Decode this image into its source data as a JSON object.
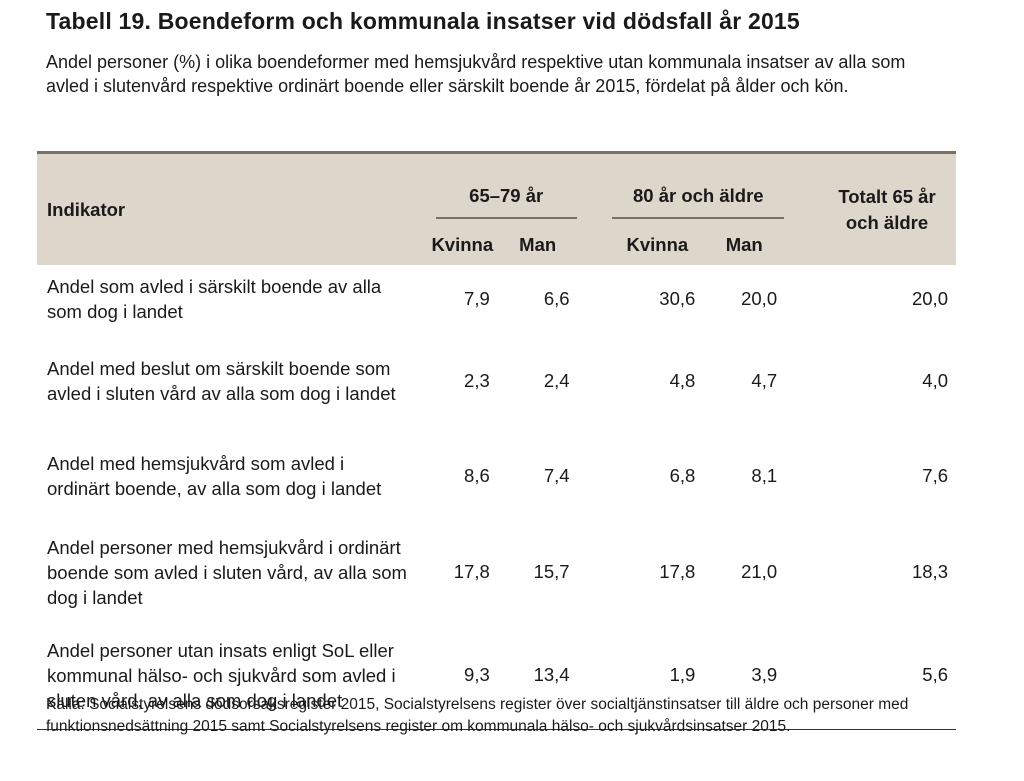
{
  "title": "Tabell 19. Boendeform och kommunala insatser vid dödsfall år 2015",
  "subtitle": "Andel personer (%) i olika boendeformer med hemsjukvård respektive utan kommunala insatser av alla som avled i slutenvård respektive ordinärt boende eller särskilt boende år 2015, fördelat på ålder och kön.",
  "table": {
    "indicator_header": "Indikator",
    "group1": "65–79 år",
    "group2": "80 år och äldre",
    "total_header": "Totalt 65 år och äldre",
    "women": "Kvinna",
    "men": "Man",
    "rows": [
      {
        "label": "Andel som avled i särskilt boende av alla som dog i landet",
        "k1": "7,9",
        "m1": "6,6",
        "k2": "30,6",
        "m2": "20,0",
        "total": "20,0"
      },
      {
        "label": "Andel med beslut om särskilt boende som avled i sluten vård av alla som dog i landet",
        "k1": "2,3",
        "m1": "2,4",
        "k2": "4,8",
        "m2": "4,7",
        "total": "4,0"
      },
      {
        "label": "Andel med hemsjukvård som avled i ordinärt boende, av alla som dog i landet",
        "k1": "8,6",
        "m1": "7,4",
        "k2": "6,8",
        "m2": "8,1",
        "total": "7,6"
      },
      {
        "label": "Andel personer med hemsjukvård i ordinärt boende som avled i sluten vård, av alla som dog i landet",
        "k1": "17,8",
        "m1": "15,7",
        "k2": "17,8",
        "m2": "21,0",
        "total": "18,3"
      },
      {
        "label": "Andel personer utan insats enligt SoL eller kommunal hälso- och sjukvård som avled i sluten vård, av alla som dog i landet",
        "k1": "9,3",
        "m1": "13,4",
        "k2": "1,9",
        "m2": "3,9",
        "total": "5,6"
      }
    ]
  },
  "source": "Källa: Socialstyrelsens dödsorsaksregister 2015, Socialstyrelsens register över socialtjänstinsatser till äldre och personer med funktionsnedsättning 2015 samt Socialstyrelsens register om kommunala hälso- och sjukvårdsinsatser 2015."
}
